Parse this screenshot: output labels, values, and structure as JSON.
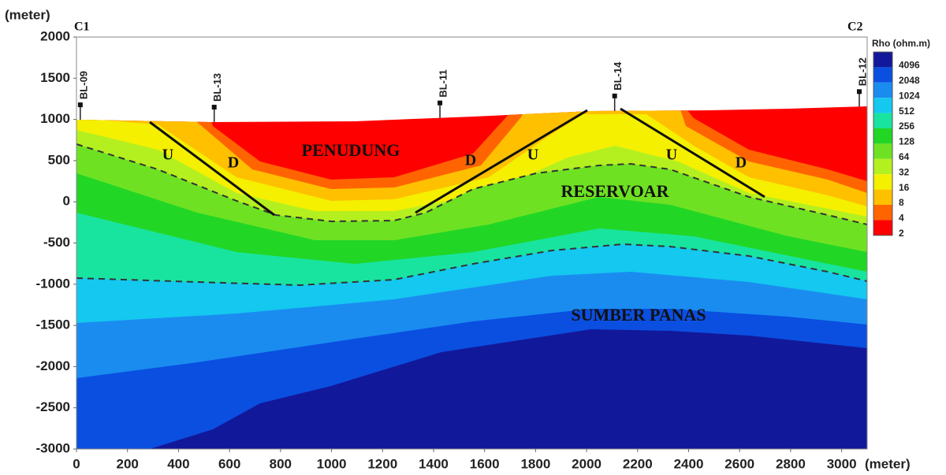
{
  "chart_data": {
    "type": "section",
    "ylabel": "(meter)",
    "xlabel": "(meter)",
    "xlim": [
      0,
      3100
    ],
    "ylim": [
      -3000,
      2000
    ],
    "xticks": [
      0,
      200,
      400,
      600,
      800,
      1000,
      1200,
      1400,
      1600,
      1800,
      2000,
      2200,
      2400,
      2600,
      2800,
      3000
    ],
    "yticks": [
      -3000,
      -2500,
      -2000,
      -1500,
      -1000,
      -500,
      0,
      500,
      1000,
      1500,
      2000
    ],
    "grid": false,
    "colorbar": {
      "title": "Rho (ohm.m)",
      "ticks": [
        4096,
        2048,
        1024,
        512,
        256,
        128,
        64,
        32,
        16,
        8,
        4,
        2
      ],
      "colors": [
        "#12189a",
        "#0a4fe0",
        "#1a8cf0",
        "#14c8f0",
        "#18e4a0",
        "#22d626",
        "#6ee222",
        "#b4f020",
        "#f4f000",
        "#ffc000",
        "#ff6400",
        "#ff0000"
      ]
    },
    "wells": [
      {
        "name": "BL-09",
        "x": 15
      },
      {
        "name": "BL-13",
        "x": 540
      },
      {
        "name": "BL-11",
        "x": 1425
      },
      {
        "name": "BL-14",
        "x": 2110
      },
      {
        "name": "BL-12",
        "x": 3100
      }
    ],
    "annotations": [
      "C1",
      "C2",
      "PENUDUNG",
      "RESERVOAR",
      "SUMBER PANAS",
      "U",
      "D",
      "D",
      "U",
      "U",
      "D"
    ]
  }
}
